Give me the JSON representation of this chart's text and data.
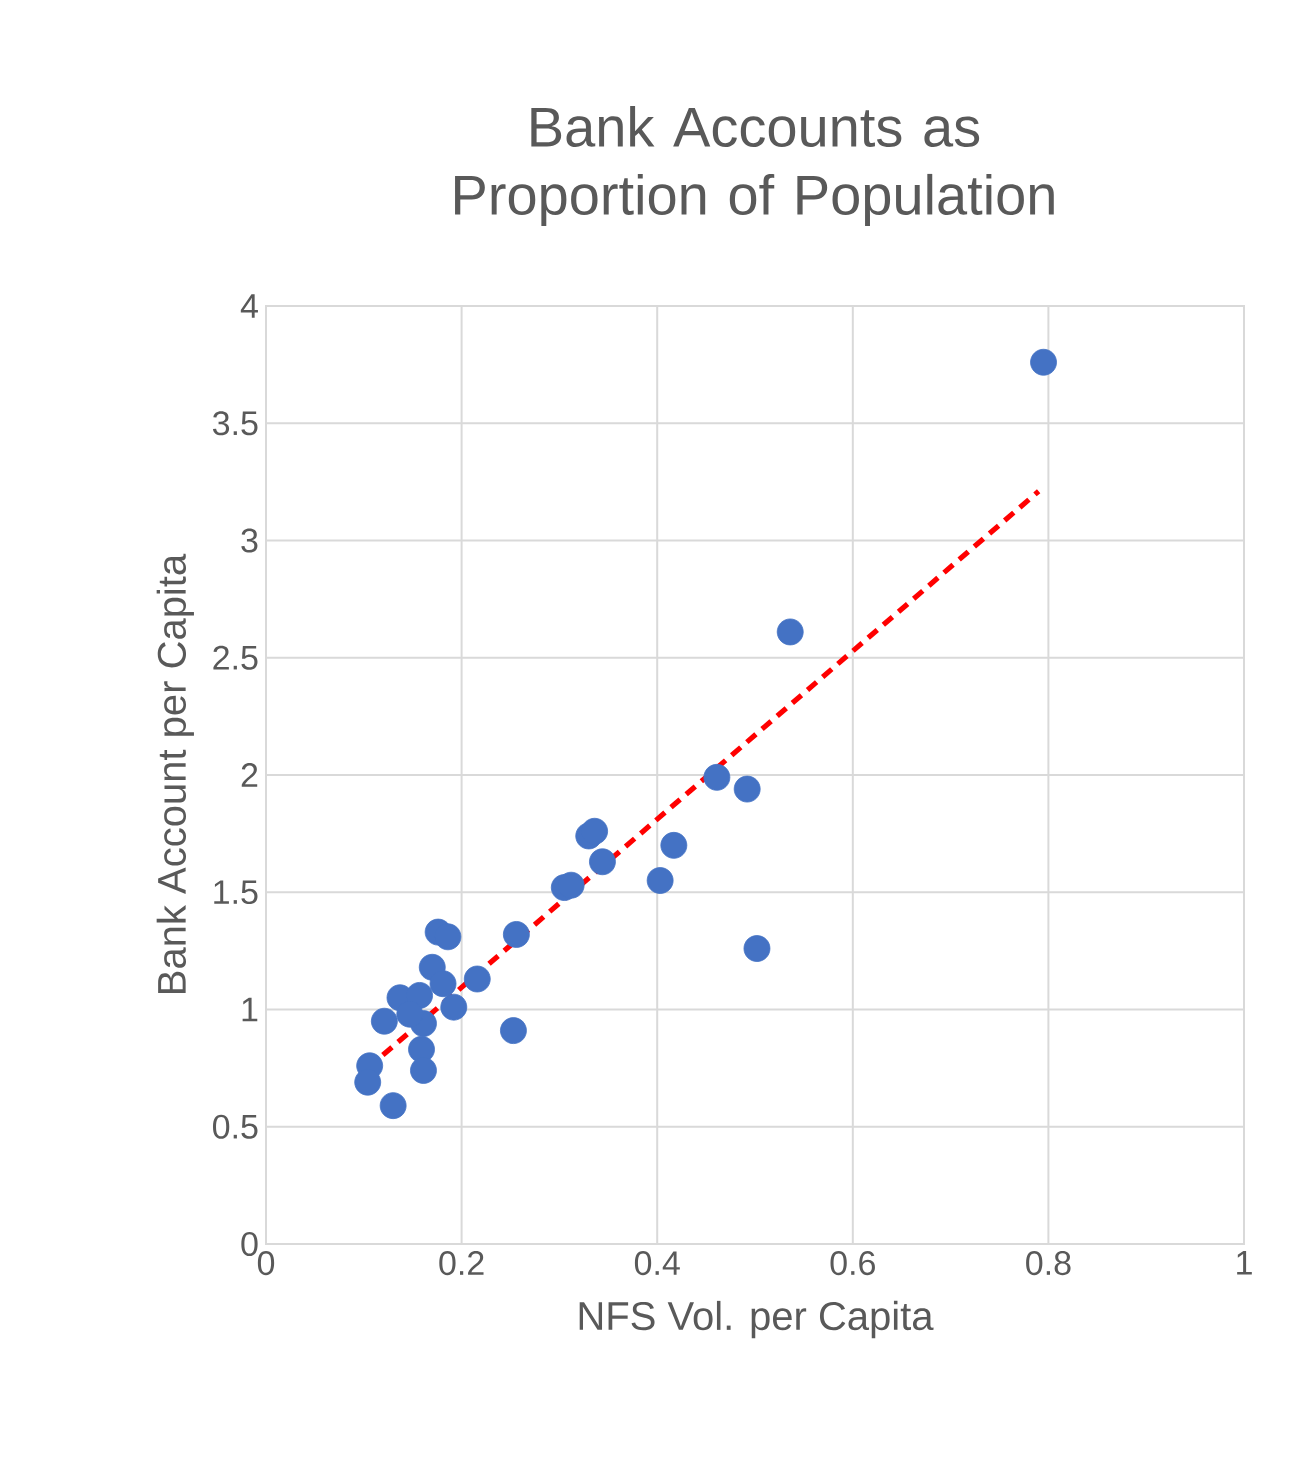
{
  "chart_data": {
    "type": "scatter",
    "title": "Bank Accounts as Proportion of Population",
    "xlabel": "NFS  Vol. per Capita",
    "ylabel": "Bank Account per Capita",
    "xlim": [
      0,
      1
    ],
    "xticks": [
      0,
      0.2,
      0.4,
      0.6,
      0.8,
      1
    ],
    "ylim": [
      0,
      4
    ],
    "yticks": [
      0,
      0.5,
      1,
      1.5,
      2,
      2.5,
      3,
      3.5,
      4
    ],
    "grid": true,
    "series": [
      {
        "type": "scatter",
        "color": "#4472c4",
        "marker": "circle",
        "x": [
          0.795,
          0.536,
          0.461,
          0.492,
          0.33,
          0.336,
          0.417,
          0.344,
          0.403,
          0.305,
          0.312,
          0.502,
          0.256,
          0.176,
          0.186,
          0.17,
          0.216,
          0.181,
          0.137,
          0.157,
          0.192,
          0.121,
          0.161,
          0.147,
          0.253,
          0.159,
          0.161,
          0.106,
          0.104,
          0.13
        ],
        "values": [
          3.76,
          2.61,
          1.99,
          1.94,
          1.74,
          1.76,
          1.7,
          1.63,
          1.55,
          1.52,
          1.53,
          1.26,
          1.32,
          1.33,
          1.31,
          1.18,
          1.13,
          1.11,
          1.05,
          1.06,
          1.01,
          0.95,
          0.94,
          0.98,
          0.91,
          0.83,
          0.74,
          0.76,
          0.69,
          0.59
        ]
      },
      {
        "type": "line",
        "color": "#ff0000",
        "marker": "none",
        "line_style": "dashed",
        "x": [
          0.104,
          0.79
        ],
        "values": [
          0.75,
          3.21
        ]
      }
    ]
  }
}
